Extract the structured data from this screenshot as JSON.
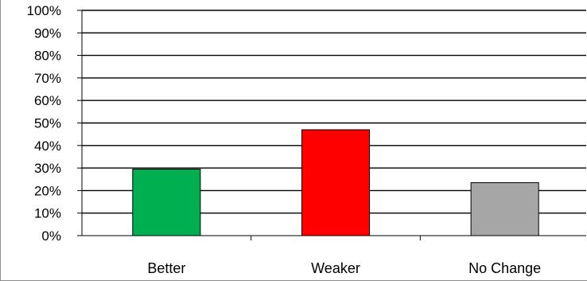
{
  "chart_data": {
    "type": "bar",
    "title": "",
    "xlabel": "",
    "ylabel": "",
    "categories": [
      "Better",
      "Weaker",
      "No Change"
    ],
    "values": [
      29.5,
      47,
      23.5
    ],
    "colors": [
      "#00b050",
      "#ff0000",
      "#a6a6a6"
    ],
    "ylim": [
      0,
      100
    ],
    "yticks": [
      0,
      10,
      20,
      30,
      40,
      50,
      60,
      70,
      80,
      90,
      100
    ],
    "ytick_labels": [
      "0%",
      "10%",
      "20%",
      "30%",
      "40%",
      "50%",
      "60%",
      "70%",
      "80%",
      "90%",
      "100%"
    ],
    "grid": true,
    "legend": "none"
  }
}
